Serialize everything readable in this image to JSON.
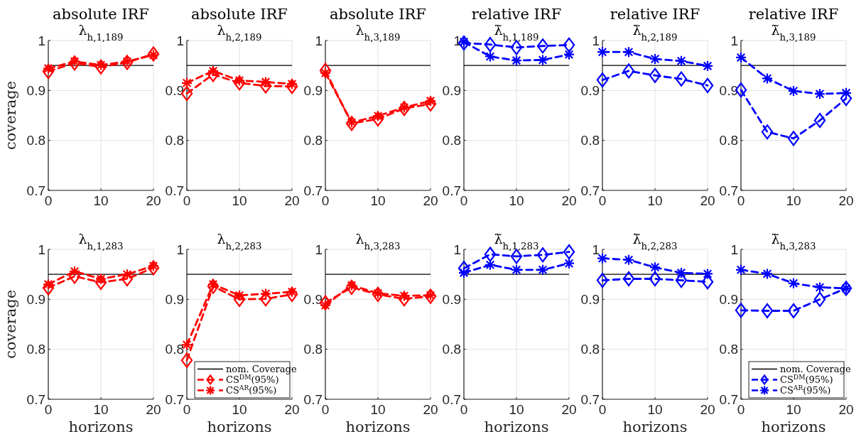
{
  "chart_data": [
    {
      "type": "line",
      "title": "absolute IRF",
      "subtitle": "λ$_{h,1,189}$",
      "ylabel": "coverage",
      "x": [
        0,
        5,
        10,
        15,
        20
      ],
      "xlim": [
        0,
        20
      ],
      "xticks": [
        0,
        10,
        20
      ],
      "ylim": [
        0.7,
        1
      ],
      "yticks": [
        0.7,
        0.8,
        0.9,
        1
      ],
      "grid": true,
      "line_style": "dashed",
      "ref_lines": [
        {
          "axis": "y",
          "value": 0.95,
          "color": "#000000"
        }
      ],
      "series": [
        {
          "color": "#ff0000",
          "marker": "diamond",
          "values": [
            0.938,
            0.955,
            0.947,
            0.956,
            0.973
          ]
        },
        {
          "color": "#ff0000",
          "marker": "cross",
          "values": [
            0.944,
            0.958,
            0.951,
            0.958,
            0.971
          ]
        }
      ]
    },
    {
      "type": "line",
      "title": "absolute IRF",
      "subtitle": "λ$_{h,2,189}$",
      "x": [
        0,
        5,
        10,
        15,
        20
      ],
      "xlim": [
        0,
        20
      ],
      "xticks": [
        0,
        10,
        20
      ],
      "ylim": [
        0.7,
        1
      ],
      "yticks": [
        0.7,
        0.8,
        0.9,
        1
      ],
      "grid": true,
      "line_style": "dashed",
      "ref_lines": [
        {
          "axis": "y",
          "value": 0.95,
          "color": "#000000"
        }
      ],
      "series": [
        {
          "color": "#ff0000",
          "marker": "diamond",
          "values": [
            0.894,
            0.932,
            0.915,
            0.909,
            0.908
          ]
        },
        {
          "color": "#ff0000",
          "marker": "cross",
          "values": [
            0.915,
            0.939,
            0.92,
            0.917,
            0.913
          ]
        }
      ]
    },
    {
      "type": "line",
      "title": "absolute IRF",
      "subtitle": "λ$_{h,3,189}$",
      "x": [
        0,
        5,
        10,
        15,
        20
      ],
      "xlim": [
        0,
        20
      ],
      "xticks": [
        0,
        10,
        20
      ],
      "ylim": [
        0.7,
        1
      ],
      "yticks": [
        0.7,
        0.8,
        0.9,
        1
      ],
      "grid": true,
      "line_style": "dashed",
      "ref_lines": [
        {
          "axis": "y",
          "value": 0.95,
          "color": "#000000"
        }
      ],
      "series": [
        {
          "color": "#ff0000",
          "marker": "diamond",
          "values": [
            0.94,
            0.834,
            0.843,
            0.864,
            0.873
          ]
        },
        {
          "color": "#ff0000",
          "marker": "cross",
          "values": [
            0.935,
            0.836,
            0.849,
            0.866,
            0.879
          ]
        }
      ]
    },
    {
      "type": "line",
      "title": "relative IRF",
      "subtitle": "λ̃$_{h,1,189}$",
      "x": [
        0,
        5,
        10,
        15,
        20
      ],
      "xlim": [
        0,
        20
      ],
      "xticks": [
        0,
        10,
        20
      ],
      "ylim": [
        0.7,
        1
      ],
      "yticks": [
        0.7,
        0.8,
        0.9,
        1
      ],
      "grid": true,
      "line_style": "dashed",
      "ref_lines": [
        {
          "axis": "y",
          "value": 0.95,
          "color": "#000000"
        }
      ],
      "series": [
        {
          "color": "#0000ff",
          "marker": "diamond",
          "values": [
            0.995,
            0.992,
            0.986,
            0.989,
            0.991
          ]
        },
        {
          "color": "#0000ff",
          "marker": "cross",
          "values": [
            0.997,
            0.968,
            0.96,
            0.961,
            0.972
          ]
        }
      ]
    },
    {
      "type": "line",
      "title": "relative IRF",
      "subtitle": "λ̃$_{h,2,189}$",
      "x": [
        0,
        5,
        10,
        15,
        20
      ],
      "xlim": [
        0,
        20
      ],
      "xticks": [
        0,
        10,
        20
      ],
      "ylim": [
        0.7,
        1
      ],
      "yticks": [
        0.7,
        0.8,
        0.9,
        1
      ],
      "grid": true,
      "line_style": "dashed",
      "ref_lines": [
        {
          "axis": "y",
          "value": 0.95,
          "color": "#000000"
        }
      ],
      "series": [
        {
          "color": "#0000ff",
          "marker": "diamond",
          "values": [
            0.921,
            0.939,
            0.93,
            0.923,
            0.91
          ]
        },
        {
          "color": "#0000ff",
          "marker": "cross",
          "values": [
            0.977,
            0.977,
            0.963,
            0.959,
            0.949
          ]
        }
      ]
    },
    {
      "type": "line",
      "title": "relative IRF",
      "subtitle": "λ̃$_{h,3,189}$",
      "x": [
        0,
        5,
        10,
        15,
        20
      ],
      "xlim": [
        0,
        20
      ],
      "xticks": [
        0,
        10,
        20
      ],
      "ylim": [
        0.7,
        1
      ],
      "yticks": [
        0.7,
        0.8,
        0.9,
        1
      ],
      "grid": true,
      "line_style": "dashed",
      "ref_lines": [
        {
          "axis": "y",
          "value": 0.95,
          "color": "#000000"
        }
      ],
      "series": [
        {
          "color": "#0000ff",
          "marker": "diamond",
          "values": [
            0.901,
            0.817,
            0.804,
            0.84,
            0.884
          ]
        },
        {
          "color": "#0000ff",
          "marker": "cross",
          "values": [
            0.966,
            0.924,
            0.899,
            0.893,
            0.895
          ]
        }
      ]
    },
    {
      "type": "line",
      "title": "λ$_{h,1,283}$",
      "xlabel": "horizons",
      "ylabel": "coverage",
      "x": [
        0,
        5,
        10,
        15,
        20
      ],
      "xlim": [
        0,
        20
      ],
      "xticks": [
        0,
        10,
        20
      ],
      "ylim": [
        0.7,
        1
      ],
      "yticks": [
        0.7,
        0.8,
        0.9,
        1
      ],
      "grid": true,
      "line_style": "dashed",
      "ref_lines": [
        {
          "axis": "y",
          "value": 0.95,
          "color": "#000000"
        }
      ],
      "series": [
        {
          "color": "#ff0000",
          "marker": "diamond",
          "values": [
            0.923,
            0.946,
            0.934,
            0.941,
            0.963
          ]
        },
        {
          "color": "#ff0000",
          "marker": "cross",
          "values": [
            0.93,
            0.956,
            0.941,
            0.95,
            0.967
          ]
        }
      ]
    },
    {
      "type": "line",
      "title": "λ$_{h,2,283}$",
      "xlabel": "horizons",
      "x": [
        0,
        5,
        10,
        15,
        20
      ],
      "xlim": [
        0,
        20
      ],
      "xticks": [
        0,
        10,
        20
      ],
      "ylim": [
        0.7,
        1
      ],
      "yticks": [
        0.7,
        0.8,
        0.9,
        1
      ],
      "grid": true,
      "line_style": "dashed",
      "legend": "bottom right",
      "ref_lines": [
        {
          "axis": "y",
          "value": 0.95,
          "color": "#000000",
          "label": "nom. Coverage"
        }
      ],
      "series": [
        {
          "name": "CS$^{DM}$(95%)",
          "color": "#ff0000",
          "marker": "diamond",
          "values": [
            0.778,
            0.926,
            0.9,
            0.901,
            0.91
          ]
        },
        {
          "name": "CS$^{AR}$(95%)",
          "color": "#ff0000",
          "marker": "cross",
          "values": [
            0.809,
            0.93,
            0.908,
            0.911,
            0.915
          ]
        }
      ]
    },
    {
      "type": "line",
      "title": "λ$_{h,3,283}$",
      "xlabel": "horizons",
      "x": [
        0,
        5,
        10,
        15,
        20
      ],
      "xlim": [
        0,
        20
      ],
      "xticks": [
        0,
        10,
        20
      ],
      "ylim": [
        0.7,
        1
      ],
      "yticks": [
        0.7,
        0.8,
        0.9,
        1
      ],
      "grid": true,
      "line_style": "dashed",
      "ref_lines": [
        {
          "axis": "y",
          "value": 0.95,
          "color": "#000000"
        }
      ],
      "series": [
        {
          "color": "#ff0000",
          "marker": "diamond",
          "values": [
            0.893,
            0.924,
            0.91,
            0.901,
            0.906
          ]
        },
        {
          "color": "#ff0000",
          "marker": "cross",
          "values": [
            0.888,
            0.928,
            0.912,
            0.907,
            0.908
          ]
        }
      ]
    },
    {
      "type": "line",
      "title": "λ̃$_{h,1,283}$",
      "xlabel": "horizons",
      "x": [
        0,
        5,
        10,
        15,
        20
      ],
      "xlim": [
        0,
        20
      ],
      "xticks": [
        0,
        10,
        20
      ],
      "ylim": [
        0.7,
        1
      ],
      "yticks": [
        0.7,
        0.8,
        0.9,
        1
      ],
      "grid": true,
      "line_style": "dashed",
      "ref_lines": [
        {
          "axis": "y",
          "value": 0.95,
          "color": "#000000"
        }
      ],
      "series": [
        {
          "color": "#0000ff",
          "marker": "diamond",
          "values": [
            0.962,
            0.99,
            0.986,
            0.989,
            0.995
          ]
        },
        {
          "color": "#0000ff",
          "marker": "cross",
          "values": [
            0.953,
            0.969,
            0.959,
            0.959,
            0.972
          ]
        }
      ]
    },
    {
      "type": "line",
      "title": "λ̃$_{h,2,283}$",
      "xlabel": "horizons",
      "x": [
        0,
        5,
        10,
        15,
        20
      ],
      "xlim": [
        0,
        20
      ],
      "xticks": [
        0,
        10,
        20
      ],
      "ylim": [
        0.7,
        1
      ],
      "yticks": [
        0.7,
        0.8,
        0.9,
        1
      ],
      "grid": true,
      "line_style": "dashed",
      "ref_lines": [
        {
          "axis": "y",
          "value": 0.95,
          "color": "#000000"
        }
      ],
      "series": [
        {
          "color": "#0000ff",
          "marker": "diamond",
          "values": [
            0.938,
            0.941,
            0.941,
            0.938,
            0.935
          ]
        },
        {
          "color": "#0000ff",
          "marker": "cross",
          "values": [
            0.982,
            0.979,
            0.964,
            0.953,
            0.951
          ]
        }
      ]
    },
    {
      "type": "line",
      "title": "λ̃$_{h,3,283}$",
      "xlabel": "horizons",
      "x": [
        0,
        5,
        10,
        15,
        20
      ],
      "xlim": [
        0,
        20
      ],
      "xticks": [
        0,
        10,
        20
      ],
      "ylim": [
        0.7,
        1
      ],
      "yticks": [
        0.7,
        0.8,
        0.9,
        1
      ],
      "grid": true,
      "line_style": "dashed",
      "legend": "bottom right",
      "ref_lines": [
        {
          "axis": "y",
          "value": 0.95,
          "color": "#000000",
          "label": "nom. Coverage"
        }
      ],
      "series": [
        {
          "name": "CS$^{DM}$(95%)",
          "color": "#0000ff",
          "marker": "diamond",
          "values": [
            0.878,
            0.877,
            0.877,
            0.9,
            0.922
          ]
        },
        {
          "name": "CS$^{AR}$(95%)",
          "color": "#0000ff",
          "marker": "cross",
          "values": [
            0.959,
            0.951,
            0.932,
            0.924,
            0.922
          ]
        }
      ]
    }
  ]
}
